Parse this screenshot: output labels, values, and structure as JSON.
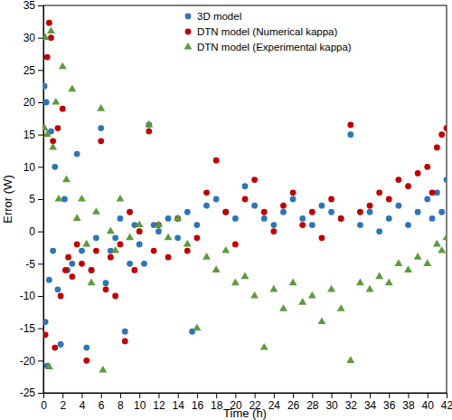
{
  "chart_data": {
    "type": "scatter",
    "x_label": "Time (h)",
    "y_label": "Error (W)",
    "xlim": [
      0,
      42
    ],
    "xticks": [
      0,
      2,
      4,
      6,
      8,
      10,
      12,
      14,
      16,
      18,
      20,
      22,
      24,
      26,
      28,
      30,
      32,
      34,
      36,
      38,
      40,
      42
    ],
    "ylim": [
      -25,
      35
    ],
    "yticks": [
      -25,
      -20,
      -15,
      -10,
      -5,
      0,
      5,
      10,
      15,
      20,
      25,
      30,
      35
    ],
    "grid": false,
    "legend": "top",
    "series": [
      {
        "name": "3D model",
        "color": "#2e75b6",
        "marker": "circle",
        "x": [
          0.1,
          0.2,
          0.3,
          0.4,
          0.6,
          0.8,
          1.0,
          1.2,
          1.5,
          1.8,
          2.2,
          2.5,
          3.0,
          3.5,
          4.0,
          4.5,
          5.0,
          5.5,
          6.0,
          6.5,
          7.0,
          7.5,
          8.0,
          8.5,
          9.0,
          9.5,
          10,
          10.5,
          11,
          11.5,
          12,
          13,
          14,
          15,
          15.5,
          16,
          17,
          18,
          19,
          20,
          21,
          22,
          23,
          24,
          25,
          26,
          27,
          28,
          29,
          30,
          31,
          32,
          33,
          34,
          35,
          36,
          37,
          38,
          39,
          40,
          40.5,
          41,
          41.5,
          42
        ],
        "values": [
          22.5,
          -14,
          20,
          -20.8,
          -7.5,
          15.5,
          -3,
          10,
          -9,
          -17.5,
          5,
          -6,
          -5,
          12,
          -3,
          -18,
          -6,
          -1,
          16,
          -8,
          -3,
          -1,
          2,
          -15.5,
          -5,
          1,
          -2,
          -5,
          16.5,
          1,
          0,
          2,
          -1,
          3,
          -15.5,
          1,
          4,
          5,
          3,
          2,
          7,
          4,
          2,
          1,
          3,
          5,
          2,
          1,
          4,
          3,
          2,
          15,
          1,
          3,
          0,
          2,
          4,
          1,
          3,
          5,
          2,
          6,
          3,
          8
        ]
      },
      {
        "name": "DTN model (Numerical kappa)",
        "color": "#c00000",
        "marker": "circle",
        "x": [
          0.2,
          0.4,
          0.6,
          0.8,
          1.0,
          1.2,
          1.5,
          1.8,
          2.0,
          2.3,
          2.6,
          3.0,
          3.5,
          4.0,
          4.5,
          5.0,
          5.5,
          6.0,
          6.5,
          7.0,
          7.5,
          8.0,
          8.5,
          9.0,
          9.5,
          10,
          11,
          11.5,
          12,
          13,
          14,
          15,
          16,
          17,
          18,
          19,
          20,
          21,
          22,
          23,
          24,
          25,
          26,
          27,
          28,
          29,
          30,
          31,
          32,
          33,
          34,
          35,
          36,
          37,
          38,
          39,
          40,
          40.5,
          41,
          41.5,
          42
        ],
        "values": [
          -16,
          27,
          32.3,
          30,
          14,
          -18,
          16,
          -10,
          19,
          -6,
          -4,
          -7,
          -2,
          -5,
          -20,
          -6,
          -3,
          14,
          -9,
          -4,
          -10,
          -2,
          -17,
          3,
          -6,
          0,
          15.5,
          -3,
          1,
          -4,
          2,
          -3,
          -1,
          6,
          11,
          3,
          -2,
          5,
          8,
          3,
          0,
          4,
          6,
          1,
          3,
          -1,
          5,
          2,
          16.5,
          3,
          4,
          6,
          5,
          8,
          7,
          9,
          10,
          6,
          13,
          15,
          16
        ]
      },
      {
        "name": "DTN model (Experimental kappa)",
        "color": "#5b9b3c",
        "marker": "triangle",
        "x": [
          0.1,
          0.2,
          0.4,
          0.6,
          0.8,
          1.0,
          1.3,
          1.6,
          2.0,
          2.4,
          3.0,
          3.5,
          4.0,
          4.5,
          5.0,
          5.5,
          6.0,
          6.2,
          7.0,
          7.5,
          8.0,
          9,
          10,
          11,
          12,
          13,
          14,
          15,
          16,
          17,
          18,
          19,
          20,
          21,
          22,
          23,
          24,
          25,
          26,
          27,
          28,
          29,
          30,
          31,
          32,
          33,
          34,
          35,
          36,
          37,
          38,
          39,
          40,
          41,
          41.5,
          42
        ],
        "values": [
          16,
          30,
          15,
          -21,
          31,
          13,
          20,
          5,
          25.5,
          8,
          22,
          2,
          5,
          -2,
          -8,
          3,
          19,
          -21.5,
          0,
          -3,
          5,
          -1,
          1,
          16.5,
          1,
          -1,
          2,
          -2,
          -15,
          -4,
          -6,
          -3,
          -8,
          -7,
          -10,
          -18,
          -9,
          -12,
          -8,
          -11,
          -10,
          -14,
          -9,
          -12,
          -20,
          -8,
          -9,
          -7,
          -8,
          -5,
          -6,
          -4,
          -5,
          -2,
          -3,
          -1
        ]
      }
    ]
  }
}
